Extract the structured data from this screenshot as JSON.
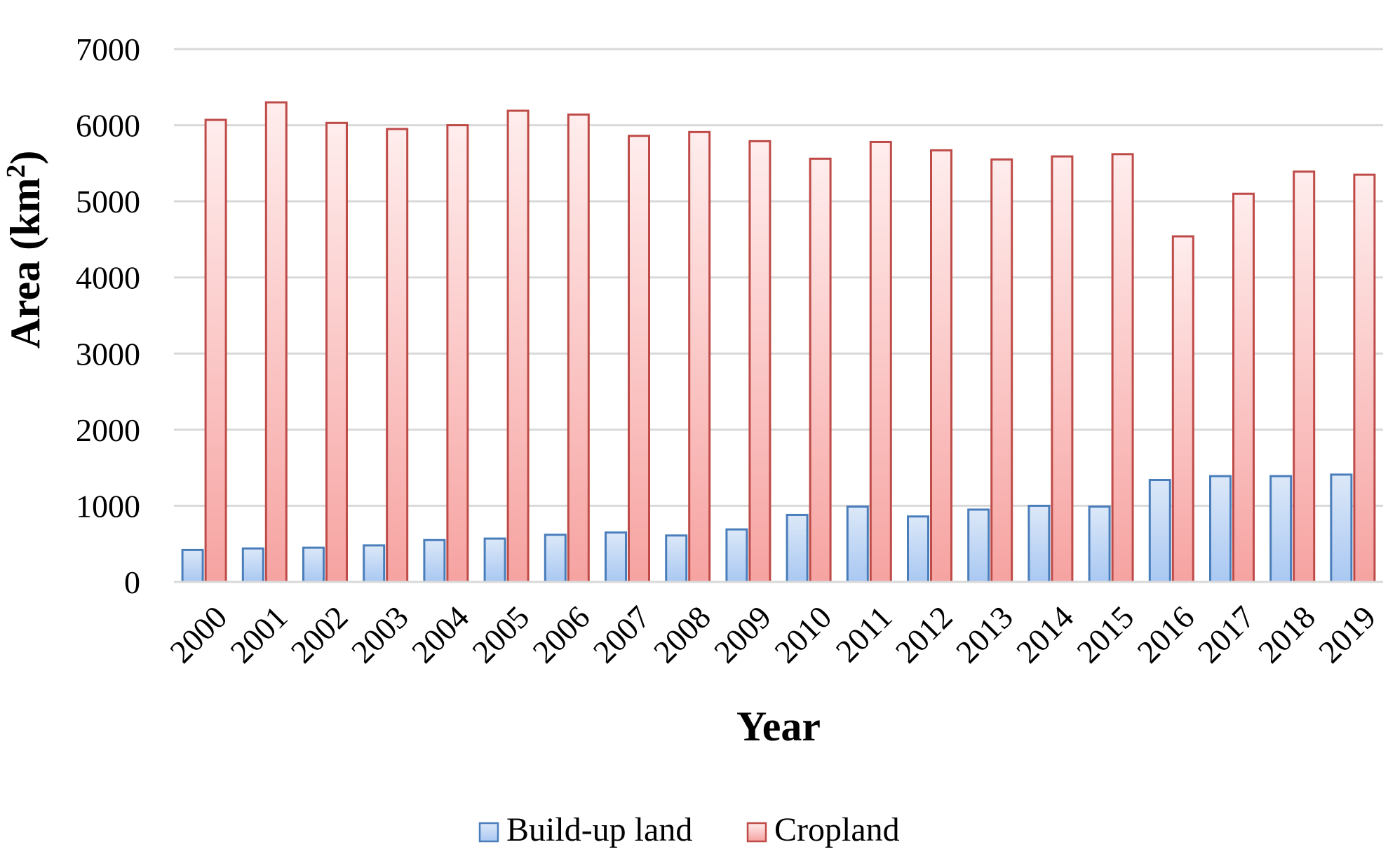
{
  "chart_data": {
    "type": "bar",
    "title": "",
    "xlabel": "Year",
    "ylabel": "Area (km",
    "ylabel_superscript": "2",
    "ylabel_close": ")",
    "ylim": [
      0,
      7000
    ],
    "yticks": [
      0,
      1000,
      2000,
      3000,
      4000,
      5000,
      6000,
      7000
    ],
    "grid": true,
    "legend_position": "bottom-center",
    "categories": [
      "2000",
      "2001",
      "2002",
      "2003",
      "2004",
      "2005",
      "2006",
      "2007",
      "2008",
      "2009",
      "2010",
      "2011",
      "2012",
      "2013",
      "2014",
      "2015",
      "2016",
      "2017",
      "2018",
      "2019"
    ],
    "series": [
      {
        "name": "Build-up land",
        "color": "#4a7ebb",
        "fill_top": "#dce8f8",
        "fill_bottom": "#a9c8f2",
        "values": [
          420,
          440,
          450,
          480,
          550,
          570,
          620,
          650,
          610,
          690,
          880,
          990,
          860,
          950,
          1000,
          990,
          1340,
          1390,
          1390,
          1410
        ]
      },
      {
        "name": "Cropland",
        "color": "#be4b48",
        "fill_top": "#ffeded",
        "fill_bottom": "#f6a3a1",
        "values": [
          6070,
          6300,
          6030,
          5950,
          6000,
          6190,
          6140,
          5860,
          5910,
          5790,
          5560,
          5780,
          5670,
          5550,
          5590,
          5620,
          4540,
          5100,
          5390,
          5350
        ]
      }
    ]
  }
}
